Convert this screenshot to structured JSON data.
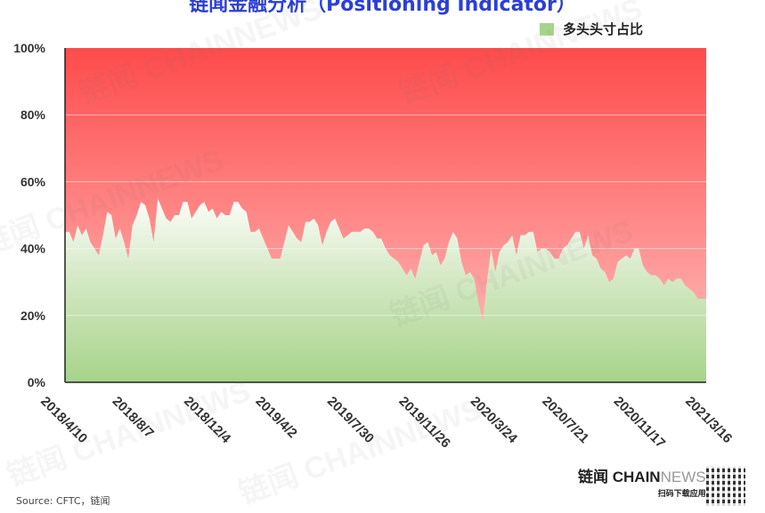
{
  "header": {
    "title": "链闻金融分析（Positioning Indicator）"
  },
  "legend": {
    "label": "多头头寸占比",
    "swatch_color": "#a6d48a"
  },
  "footer": {
    "brand_cn": "链闻",
    "brand_en_bold": "CHAIN",
    "brand_en_light": "NEWS",
    "brand_sub": "扫码下载应用",
    "source": "Source: CFTC，链闻"
  },
  "watermark_text": "链闻 CHAINNEWS",
  "colors": {
    "top_red": "#fe4b4b",
    "mid_pink": "#ffbcbc",
    "area_light": "#f7fbf2",
    "area_green": "#a6d48a"
  },
  "chart_data": {
    "type": "area",
    "xlabel": "",
    "ylabel": "",
    "ylim": [
      0,
      100
    ],
    "y_ticks": [
      "0%",
      "20%",
      "40%",
      "60%",
      "80%",
      "100%"
    ],
    "x_ticks": [
      "2018/4/10",
      "2018/8/7",
      "2018/12/4",
      "2019/4/2",
      "2019/7/30",
      "2019/11/26",
      "2020/3/24",
      "2020/7/21",
      "2020/11/17",
      "2021/3/16"
    ],
    "grid": true,
    "series": [
      {
        "name": "多头头寸占比",
        "x_start": "2018/4/10",
        "interval": "weekly",
        "values": [
          45,
          45,
          42,
          47,
          44,
          46,
          42,
          40,
          38,
          44,
          51,
          50,
          43,
          46,
          42,
          37,
          47,
          50,
          54,
          53,
          49,
          42,
          55,
          52,
          49,
          48,
          50,
          50,
          54,
          54,
          49,
          51,
          53,
          54,
          51,
          52,
          49,
          51,
          50,
          50,
          54,
          54,
          52,
          51,
          45,
          45,
          46,
          43,
          40,
          37,
          37,
          37,
          42,
          47,
          45,
          43,
          42,
          48,
          48,
          49,
          47,
          41,
          45,
          48,
          49,
          46,
          43,
          44,
          45,
          45,
          45,
          46,
          46,
          45,
          43,
          43,
          40,
          38,
          37,
          36,
          34,
          32,
          34,
          31,
          36,
          41,
          42,
          38,
          39,
          35,
          37,
          42,
          45,
          43,
          36,
          32,
          33,
          31,
          24,
          18,
          30,
          40,
          33,
          39,
          41,
          42,
          44,
          38,
          44,
          44,
          45,
          45,
          39,
          40,
          40,
          39,
          37,
          37,
          40,
          41,
          43,
          45,
          45,
          40,
          44,
          38,
          37,
          34,
          33,
          30,
          31,
          36,
          37,
          38,
          37,
          40,
          40,
          35,
          33,
          32,
          32,
          31,
          29,
          31,
          30,
          31,
          31,
          29,
          28,
          27,
          25,
          25,
          25
        ]
      }
    ]
  }
}
